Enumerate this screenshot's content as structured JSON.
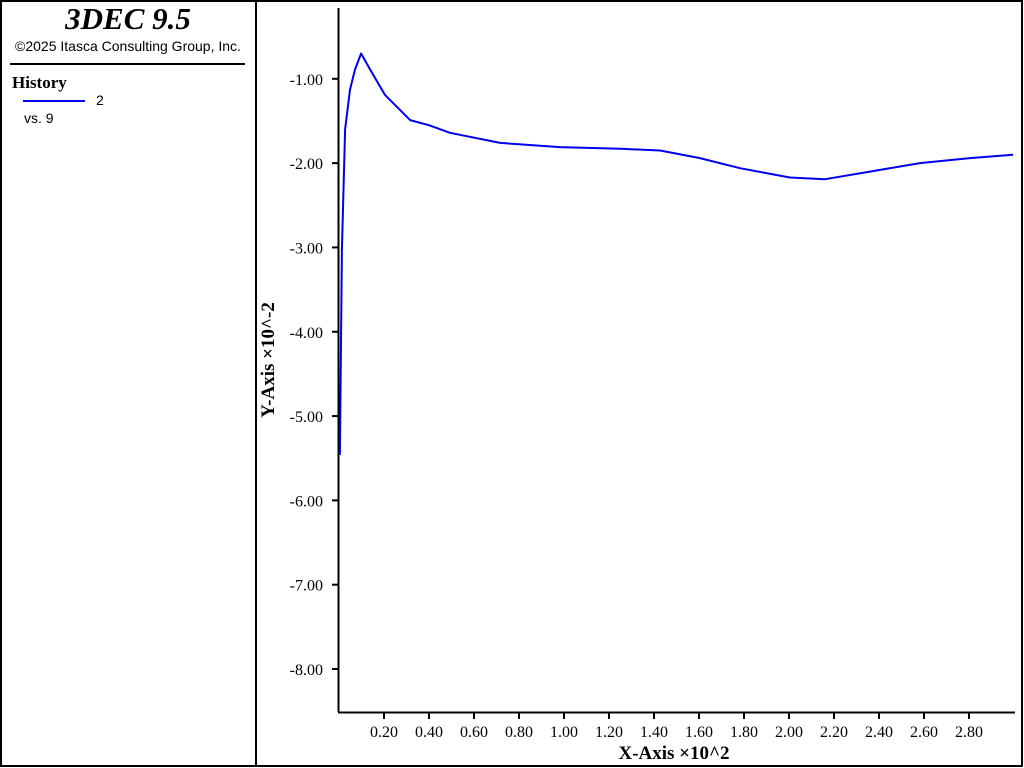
{
  "chart_data": {
    "type": "line",
    "title": "3DEC 9.5",
    "subtitle": "©2025 Itasca Consulting Group, Inc.",
    "legend_title": "History",
    "legend_note": "vs. 9",
    "x_label": "X-Axis ×10^2",
    "y_label": "Y-Axis ×10^-2",
    "x": [
      0.004,
      0.013,
      0.027,
      0.049,
      0.071,
      0.098,
      0.138,
      0.204,
      0.316,
      0.4,
      0.493,
      0.716,
      0.982,
      1.249,
      1.427,
      1.604,
      1.782,
      2.004,
      2.16,
      2.36,
      2.582,
      2.804,
      2.996
    ],
    "series": [
      {
        "name": "2",
        "color": "#0000ee",
        "values": [
          -5.46,
          -3.03,
          -1.6,
          -1.13,
          -0.89,
          -0.7,
          -0.89,
          -1.19,
          -1.49,
          -1.55,
          -1.64,
          -1.76,
          -1.81,
          -1.83,
          -1.85,
          -1.94,
          -2.06,
          -2.17,
          -2.19,
          -2.1,
          -2.0,
          -1.94,
          -1.9
        ]
      }
    ],
    "xlim": [
      0,
      3.0
    ],
    "ylim": [
      -8.51,
      -0.16
    ],
    "xticks": [
      {
        "value": 0.2,
        "label": "0.20"
      },
      {
        "value": 0.4,
        "label": "0.40"
      },
      {
        "value": 0.6,
        "label": "0.60"
      },
      {
        "value": 0.8,
        "label": "0.80"
      },
      {
        "value": 1.0,
        "label": "1.00"
      },
      {
        "value": 1.2,
        "label": "1.20"
      },
      {
        "value": 1.4,
        "label": "1.40"
      },
      {
        "value": 1.6,
        "label": "1.60"
      },
      {
        "value": 1.8,
        "label": "1.80"
      },
      {
        "value": 2.0,
        "label": "2.00"
      },
      {
        "value": 2.2,
        "label": "2.20"
      },
      {
        "value": 2.4,
        "label": "2.40"
      },
      {
        "value": 2.6,
        "label": "2.60"
      },
      {
        "value": 2.8,
        "label": "2.80"
      }
    ],
    "yticks": [
      {
        "value": -1,
        "label": "-1.00"
      },
      {
        "value": -2,
        "label": "-2.00"
      },
      {
        "value": -3,
        "label": "-3.00"
      },
      {
        "value": -4,
        "label": "-4.00"
      },
      {
        "value": -5,
        "label": "-5.00"
      },
      {
        "value": -6,
        "label": "-6.00"
      },
      {
        "value": -7,
        "label": "-7.00"
      },
      {
        "value": -8,
        "label": "-8.00"
      }
    ]
  }
}
